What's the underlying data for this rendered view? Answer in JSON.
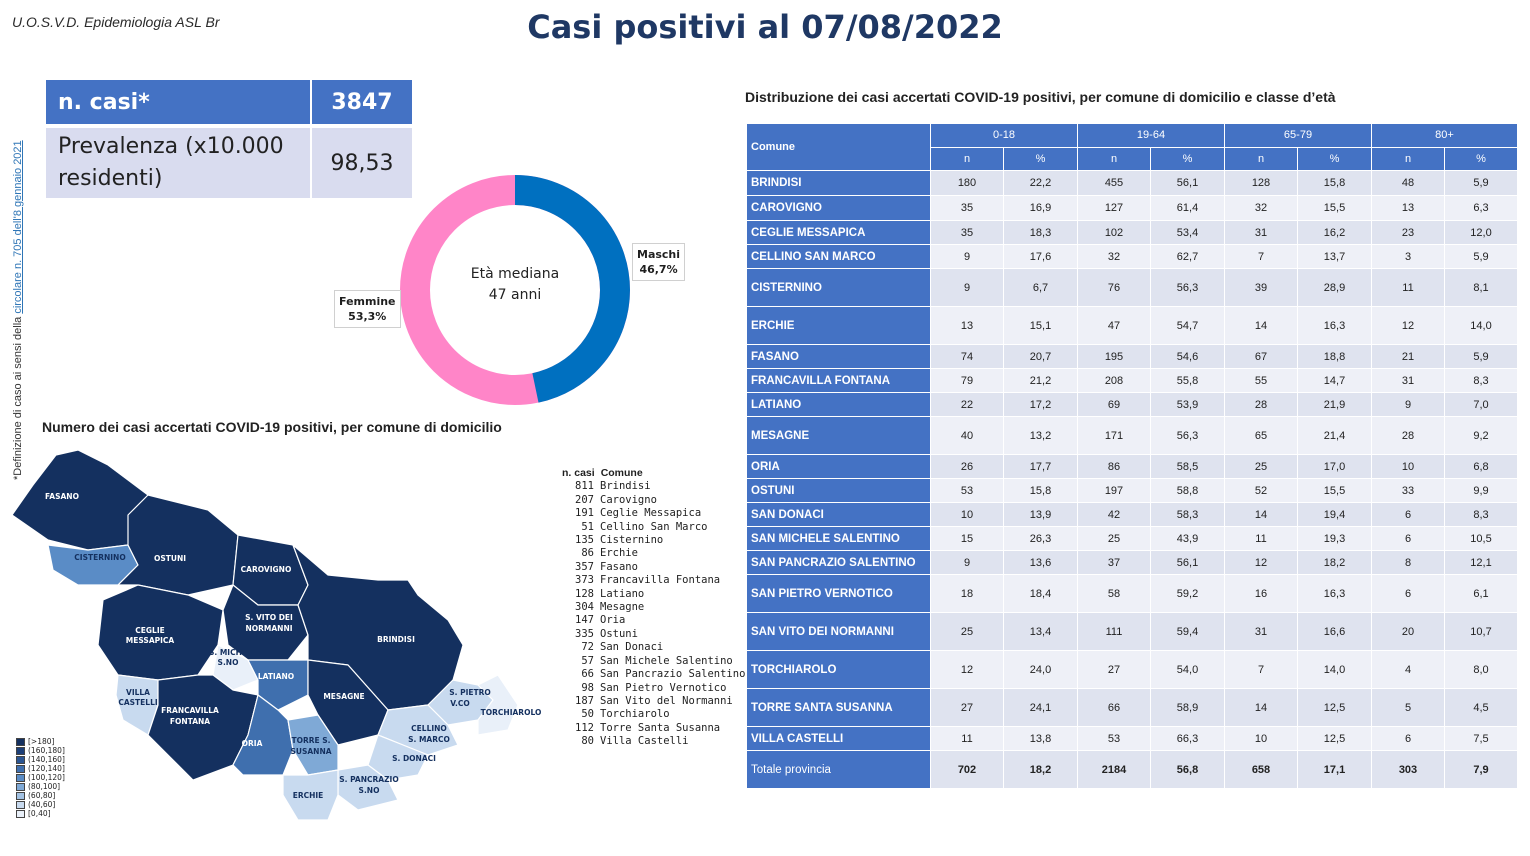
{
  "header": {
    "org": "U.O.S.V.D. Epidemiologia ASL Br",
    "title": "Casi positivi al 07/08/2022"
  },
  "side_note": {
    "prefix": "*Definizione di caso ai sensi della ",
    "link": "circolare n. 705 dell'8 gennaio 2021"
  },
  "stats": {
    "n_casi_label": "n. casi*",
    "n_casi_value": "3847",
    "prevalenza_label": "Prevalenza (x10.000 residenti)",
    "prevalenza_value": "98,53"
  },
  "donut": {
    "center_line1": "Età mediana",
    "center_line2": "47 anni",
    "maschi_label": "Maschi",
    "maschi_value": "46,7%",
    "femmine_label": "Femmine",
    "femmine_value": "53,3%",
    "maschi_fraction": 0.467,
    "maschi_color": "#0070c0",
    "femmine_color": "#ff85c8"
  },
  "map": {
    "title": "Numero dei casi accertati COVID-19 positivi, per comune di domicilio",
    "list_header_n": "n. casi",
    "list_header_comune": "Comune",
    "list": [
      {
        "n": "811",
        "comune": "Brindisi"
      },
      {
        "n": "207",
        "comune": "Carovigno"
      },
      {
        "n": "191",
        "comune": "Ceglie Messapica"
      },
      {
        "n": "51",
        "comune": "Cellino San Marco"
      },
      {
        "n": "135",
        "comune": "Cisternino"
      },
      {
        "n": "86",
        "comune": "Erchie"
      },
      {
        "n": "357",
        "comune": "Fasano"
      },
      {
        "n": "373",
        "comune": "Francavilla Fontana"
      },
      {
        "n": "128",
        "comune": "Latiano"
      },
      {
        "n": "304",
        "comune": "Mesagne"
      },
      {
        "n": "147",
        "comune": "Oria"
      },
      {
        "n": "335",
        "comune": "Ostuni"
      },
      {
        "n": "72",
        "comune": "San Donaci"
      },
      {
        "n": "57",
        "comune": "San Michele Salentino"
      },
      {
        "n": "66",
        "comune": "San Pancrazio Salentino"
      },
      {
        "n": "98",
        "comune": "San Pietro Vernotico"
      },
      {
        "n": "187",
        "comune": "San Vito del Normanni"
      },
      {
        "n": "50",
        "comune": "Torchiarolo"
      },
      {
        "n": "112",
        "comune": "Torre Santa Susanna"
      },
      {
        "n": "80",
        "comune": "Villa Castelli"
      }
    ],
    "scale": [
      {
        "label": "[>180]",
        "color": "#14305f"
      },
      {
        "label": "(160,180]",
        "color": "#1c3f78"
      },
      {
        "label": "(140,160]",
        "color": "#2b5592"
      },
      {
        "label": "(120,140]",
        "color": "#3f6fae"
      },
      {
        "label": "(100,120]",
        "color": "#5a8cc6"
      },
      {
        "label": "(80,100]",
        "color": "#7fa9d6"
      },
      {
        "label": "(60,80]",
        "color": "#a3c2e3"
      },
      {
        "label": "(40,60]",
        "color": "#c8daef"
      },
      {
        "label": "[0,40]",
        "color": "#e9f0f9"
      }
    ],
    "region_labels": {
      "fasano": "FASANO",
      "cisternino": "CISTERNINO",
      "ostuni": "OSTUNI",
      "carovigno": "CAROVIGNO",
      "ceglie1": "CEGLIE",
      "ceglie2": "MESSAPICA",
      "svito1": "S. VITO DEI",
      "svito2": "NORMANNI",
      "smichele1": "S. MICHE",
      "smichele2": "S.NO",
      "latiano": "LATIANO",
      "brindisi": "BRINDISI",
      "villa1": "VILLA",
      "villa2": "CASTELLI",
      "francavilla1": "FRANCAVILLA",
      "francavilla2": "FONTANA",
      "mesagne": "MESAGNE",
      "spietro1": "S. PIETRO",
      "spietro2": "V.CO",
      "torchiarolo": "TORCHIAROLO",
      "oria": "ORIA",
      "torre1": "TORRE S.",
      "torre2": "SUSANNA",
      "cellino1": "CELLINO",
      "cellino2": "S. MARCO",
      "sdonaci": "S. DONACI",
      "spancrazio1": "S. PANCRAZIO",
      "spancrazio2": "S.NO",
      "erchie": "ERCHIE"
    }
  },
  "table": {
    "title": "Distribuzione dei casi accertati COVID-19 positivi, per comune di domicilio e classe d’età",
    "col_comune": "Comune",
    "age_groups": [
      "0-18",
      "19-64",
      "65-79",
      "80+"
    ],
    "sub_n": "n",
    "sub_pct": "%",
    "rows": [
      {
        "comune": "BRINDISI",
        "v": [
          "180",
          "22,2",
          "455",
          "56,1",
          "128",
          "15,8",
          "48",
          "5,9"
        ]
      },
      {
        "comune": "CAROVIGNO",
        "v": [
          "35",
          "16,9",
          "127",
          "61,4",
          "32",
          "15,5",
          "13",
          "6,3"
        ]
      },
      {
        "comune": "CEGLIE MESSAPICA",
        "v": [
          "35",
          "18,3",
          "102",
          "53,4",
          "31",
          "16,2",
          "23",
          "12,0"
        ]
      },
      {
        "comune": "CELLINO SAN MARCO",
        "v": [
          "9",
          "17,6",
          "32",
          "62,7",
          "7",
          "13,7",
          "3",
          "5,9"
        ]
      },
      {
        "comune": "CISTERNINO",
        "v": [
          "9",
          "6,7",
          "76",
          "56,3",
          "39",
          "28,9",
          "11",
          "8,1"
        ]
      },
      {
        "comune": "ERCHIE",
        "v": [
          "13",
          "15,1",
          "47",
          "54,7",
          "14",
          "16,3",
          "12",
          "14,0"
        ]
      },
      {
        "comune": "FASANO",
        "v": [
          "74",
          "20,7",
          "195",
          "54,6",
          "67",
          "18,8",
          "21",
          "5,9"
        ]
      },
      {
        "comune": "FRANCAVILLA FONTANA",
        "v": [
          "79",
          "21,2",
          "208",
          "55,8",
          "55",
          "14,7",
          "31",
          "8,3"
        ]
      },
      {
        "comune": "LATIANO",
        "v": [
          "22",
          "17,2",
          "69",
          "53,9",
          "28",
          "21,9",
          "9",
          "7,0"
        ]
      },
      {
        "comune": "MESAGNE",
        "v": [
          "40",
          "13,2",
          "171",
          "56,3",
          "65",
          "21,4",
          "28",
          "9,2"
        ]
      },
      {
        "comune": "ORIA",
        "v": [
          "26",
          "17,7",
          "86",
          "58,5",
          "25",
          "17,0",
          "10",
          "6,8"
        ]
      },
      {
        "comune": "OSTUNI",
        "v": [
          "53",
          "15,8",
          "197",
          "58,8",
          "52",
          "15,5",
          "33",
          "9,9"
        ]
      },
      {
        "comune": "SAN DONACI",
        "v": [
          "10",
          "13,9",
          "42",
          "58,3",
          "14",
          "19,4",
          "6",
          "8,3"
        ]
      },
      {
        "comune": "SAN MICHELE SALENTINO",
        "v": [
          "15",
          "26,3",
          "25",
          "43,9",
          "11",
          "19,3",
          "6",
          "10,5"
        ]
      },
      {
        "comune": "SAN PANCRAZIO SALENTINO",
        "v": [
          "9",
          "13,6",
          "37",
          "56,1",
          "12",
          "18,2",
          "8",
          "12,1"
        ]
      },
      {
        "comune": "SAN PIETRO VERNOTICO",
        "v": [
          "18",
          "18,4",
          "58",
          "59,2",
          "16",
          "16,3",
          "6",
          "6,1"
        ]
      },
      {
        "comune": "SAN VITO DEI NORMANNI",
        "v": [
          "25",
          "13,4",
          "111",
          "59,4",
          "31",
          "16,6",
          "20",
          "10,7"
        ]
      },
      {
        "comune": "TORCHIAROLO",
        "v": [
          "12",
          "24,0",
          "27",
          "54,0",
          "7",
          "14,0",
          "4",
          "8,0"
        ]
      },
      {
        "comune": "TORRE SANTA SUSANNA",
        "v": [
          "27",
          "24,1",
          "66",
          "58,9",
          "14",
          "12,5",
          "5",
          "4,5"
        ]
      },
      {
        "comune": "VILLA CASTELLI",
        "v": [
          "11",
          "13,8",
          "53",
          "66,3",
          "10",
          "12,5",
          "6",
          "7,5"
        ]
      }
    ],
    "total": {
      "comune": "Totale provincia",
      "v": [
        "702",
        "18,2",
        "2184",
        "56,8",
        "658",
        "17,1",
        "303",
        "7,9"
      ]
    }
  }
}
